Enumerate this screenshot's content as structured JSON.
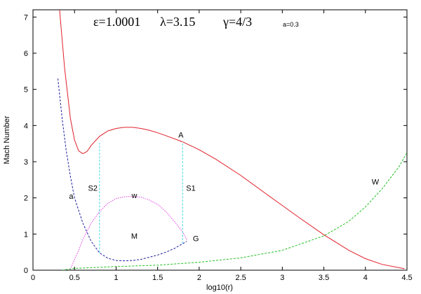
{
  "chart_data": {
    "type": "line",
    "title_parts": [
      "ε=1.0001",
      "λ=3.15",
      "γ=4/3"
    ],
    "subtitle": "a=0.3",
    "xlabel": "log10(r)",
    "ylabel": "Mach Number",
    "xlim": [
      0,
      4.5
    ],
    "ylim": [
      0,
      7.2
    ],
    "xticks": [
      "0",
      "0.5",
      "1",
      "1.5",
      "2",
      "2.5",
      "3",
      "3.5",
      "4",
      "4.5"
    ],
    "yticks": [
      "0",
      "1",
      "2",
      "3",
      "4",
      "5",
      "6",
      "7"
    ],
    "grid": false,
    "legend": "none",
    "series": [
      {
        "color": "#e0202a",
        "style": "solid",
        "x": [
          0.32,
          0.38,
          0.45,
          0.5,
          0.55,
          0.6,
          0.65,
          0.7,
          0.8,
          0.9,
          1.0,
          1.1,
          1.2,
          1.3,
          1.4,
          1.5,
          1.6,
          1.8,
          2.0,
          2.2,
          2.5,
          2.8,
          3.0,
          3.2,
          3.5,
          3.8,
          4.0,
          4.2,
          4.47
        ],
        "y": [
          7.2,
          5.6,
          4.2,
          3.6,
          3.3,
          3.22,
          3.28,
          3.45,
          3.7,
          3.85,
          3.92,
          3.95,
          3.95,
          3.92,
          3.87,
          3.8,
          3.72,
          3.55,
          3.33,
          3.07,
          2.62,
          2.12,
          1.79,
          1.46,
          0.98,
          0.55,
          0.32,
          0.16,
          0.04
        ]
      },
      {
        "color": "#2020a0",
        "style": "dashed",
        "x": [
          0.3,
          0.35,
          0.4,
          0.45,
          0.5,
          0.6,
          0.7,
          0.8,
          0.9,
          1.0,
          1.1,
          1.2,
          1.3,
          1.4,
          1.5,
          1.6,
          1.7,
          1.8,
          1.85
        ],
        "y": [
          5.3,
          4.2,
          3.3,
          2.6,
          2.0,
          1.3,
          0.8,
          0.48,
          0.33,
          0.27,
          0.26,
          0.27,
          0.3,
          0.36,
          0.42,
          0.5,
          0.6,
          0.73,
          0.8
        ]
      },
      {
        "color": "#e040e0",
        "style": "dotted",
        "x": [
          0.45,
          0.5,
          0.55,
          0.6,
          0.7,
          0.8,
          0.9,
          1.0,
          1.1,
          1.2,
          1.3,
          1.4,
          1.5,
          1.6,
          1.7,
          1.8,
          1.85
        ],
        "y": [
          0.02,
          0.3,
          0.55,
          0.85,
          1.3,
          1.62,
          1.85,
          1.98,
          2.03,
          2.04,
          2.02,
          1.94,
          1.82,
          1.62,
          1.35,
          1.06,
          0.85
        ]
      },
      {
        "color": "#20c020",
        "style": "dashed",
        "x": [
          0.35,
          0.5,
          1.0,
          1.5,
          2.0,
          2.5,
          3.0,
          3.5,
          3.8,
          4.0,
          4.2,
          4.4,
          4.5
        ],
        "y": [
          0.0,
          0.05,
          0.1,
          0.14,
          0.22,
          0.34,
          0.55,
          0.95,
          1.35,
          1.75,
          2.25,
          2.85,
          3.25
        ]
      },
      {
        "color": "#40d8e8",
        "style": "dashed",
        "x": [
          0.8,
          0.8
        ],
        "y": [
          0.48,
          3.52
        ]
      },
      {
        "color": "#40d8e8",
        "style": "dashed",
        "x": [
          1.8,
          1.8
        ],
        "y": [
          0.73,
          3.55
        ]
      }
    ],
    "annotations": [
      {
        "text": "A",
        "x": 1.78,
        "y": 3.75
      },
      {
        "text": "S2",
        "x": 0.72,
        "y": 2.27
      },
      {
        "text": "S1",
        "x": 1.9,
        "y": 2.27
      },
      {
        "text": "w",
        "x": 1.22,
        "y": 2.07
      },
      {
        "text": "a",
        "x": 0.46,
        "y": 2.05
      },
      {
        "text": "M",
        "x": 1.22,
        "y": 0.95
      },
      {
        "text": "G",
        "x": 1.96,
        "y": 0.88
      },
      {
        "text": "W",
        "x": 4.12,
        "y": 2.45
      }
    ]
  }
}
